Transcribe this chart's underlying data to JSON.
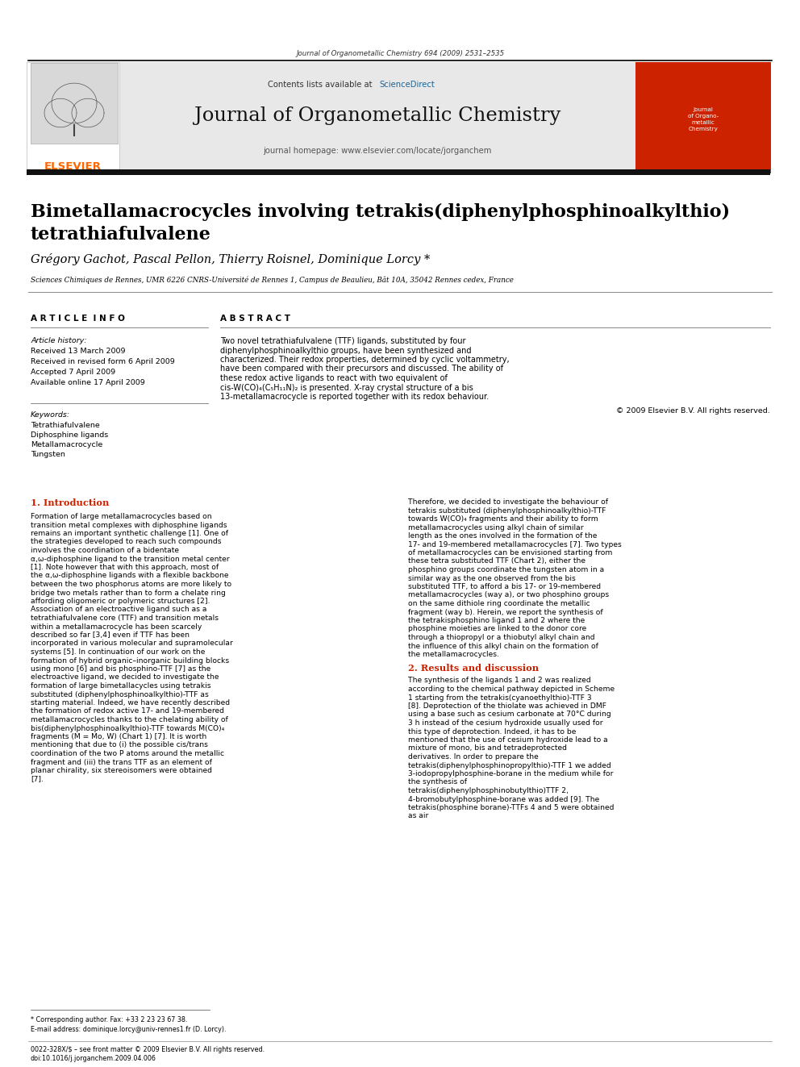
{
  "page_width": 9.92,
  "page_height": 13.23,
  "bg_color": "#ffffff",
  "header_citation": "Journal of Organometallic Chemistry 694 (2009) 2531–2535",
  "journal_name": "Journal of Organometallic Chemistry",
  "journal_homepage": "journal homepage: www.elsevier.com/locate/jorganchem",
  "contents_text": "Contents lists available at ScienceDirect",
  "sciencedirect_color": "#1a6496",
  "elsevier_color": "#ff6600",
  "elsevier_text": "ELSEVIER",
  "header_banner_bg": "#e8e8e8",
  "paper_title_line1": "Bimetallamacrocycles involving tetrakis(diphenylphosphinoalkylthio)",
  "paper_title_line2": "tetrathiafulvalene",
  "authors": "Grégory Gachot, Pascal Pellon, Thierry Roisnel, Dominique Lorcy *",
  "affiliation": "Sciences Chimiques de Rennes, UMR 6226 CNRS-Université de Rennes 1, Campus de Beaulieu, Bât 10A, 35042 Rennes cedex, France",
  "article_info_header": "A R T I C L E  I N F O",
  "abstract_header": "A B S T R A C T",
  "article_history_label": "Article history:",
  "received": "Received 13 March 2009",
  "received_revised": "Received in revised form 6 April 2009",
  "accepted": "Accepted 7 April 2009",
  "available": "Available online 17 April 2009",
  "keywords_label": "Keywords:",
  "keyword1": "Tetrathiafulvalene",
  "keyword2": "Diphosphine ligands",
  "keyword3": "Metallamacrocycle",
  "keyword4": "Tungsten",
  "abstract_text": "Two novel tetrathiafulvalene (TTF) ligands, substituted by four diphenylphosphinoalkylthio groups, have been synthesized and characterized. Their redox properties, determined by cyclic voltammetry, have been compared with their precursors and discussed. The ability of these redox active ligands to react with two equivalent of cis-W(CO)₄(C₅H₁₁N)₂ is presented. X-ray crystal structure of a bis 13-metallamacrocycle is reported together with its redox behaviour.",
  "copyright": "© 2009 Elsevier B.V. All rights reserved.",
  "intro_header": "1. Introduction",
  "intro_text_col1": "Formation of large metallamacrocycles based on transition metal complexes with diphosphine ligands remains an important synthetic challenge [1]. One of the strategies developed to reach such compounds involves the coordination of a bidentate α,ω-diphosphine ligand to the transition metal center [1]. Note however that with this approach, most of the α,ω-diphosphine ligands with a flexible backbone between the two phosphorus atoms are more likely to bridge two metals rather than to form a chelate ring affording oligomeric or polymeric structures [2]. Association of an electroactive ligand such as a tetrathiafulvalene core (TTF) and transition metals within a metallamacrocycle has been scarcely described so far [3,4] even if TTF has been incorporated in various molecular and supramolecular systems [5]. In continuation of our work on the formation of hybrid organic–inorganic building blocks using mono [6] and bis phosphino-TTF [7] as the electroactive ligand, we decided to investigate the formation of large bimetallacycles using tetrakis substituted (diphenylphosphinoalkylthio)-TTF as starting material. Indeed, we have recently described the formation of redox active 17- and 19-membered metallamacrocycles thanks to the chelating ability of bis(diphenylphosphinoalkylthio)-TTF towards M(CO)₄ fragments (M = Mo, W) (Chart 1) [7]. It is worth mentioning that due to (i) the possible cis/trans coordination of the two P atoms around the metallic fragment and (iii) the trans TTF as an element of planar chirality, six stereoisomers were obtained [7].",
  "intro_text_col2": "Therefore, we decided to investigate the behaviour of tetrakis substituted (diphenylphosphinoalkylthio)-TTF towards W(CO)₄ fragments and their ability to form metallamacrocycles using alkyl chain of similar length as the ones involved in the formation of the 17- and 19-membered metallamacrocycles [7]. Two types of metallamacrocycles can be envisioned starting from these tetra substituted TTF (Chart 2), either the phosphino groups coordinate the tungsten atom in a similar way as the one observed from the bis substituted TTF, to afford a bis 17- or 19-membered metallamacrocycles (way a), or two phosphino groups on the same dithiole ring coordinate the metallic fragment (way b). Herein, we report the synthesis of the tetrakisphosphino ligand 1 and 2 where the phosphine moieties are linked to the donor core through a thiopropyl or a thiobutyl alkyl chain and the influence of this alkyl chain on the formation of the metallamacrocycles.",
  "results_header": "2. Results and discussion",
  "results_text": "The synthesis of the ligands 1 and 2 was realized according to the chemical pathway depicted in Scheme 1 starting from the tetrakis(cyanoethylthio)-TTF 3 [8]. Deprotection of the thiolate was achieved in DMF using a base such as cesium carbonate at 70°C during 3 h instead of the cesium hydroxide usually used for this type of deprotection. Indeed, it has to be mentioned that the use of cesium hydroxide lead to a mixture of mono, bis and tetradeprotected derivatives. In order to prepare the tetrakis(diphenylphosphinopropylthio)-TTF 1 we added 3-iodopropylphosphine-borane in the medium while for the synthesis of tetrakis(diphenylphosphinobutylthio)TTF 2, 4-bromobutylphosphine-borane was added [9]. The tetrakis(phosphine borane)-TTFs 4 and 5 were obtained as air",
  "footnote_star": "* Corresponding author. Fax: +33 2 23 23 67 38.",
  "footnote_email": "E-mail address: dominique.lorcy@univ-rennes1.fr (D. Lorcy).",
  "footer_line1": "0022-328X/$ – see front matter © 2009 Elsevier B.V. All rights reserved.",
  "footer_line2": "doi:10.1016/j.jorganchem.2009.04.006"
}
